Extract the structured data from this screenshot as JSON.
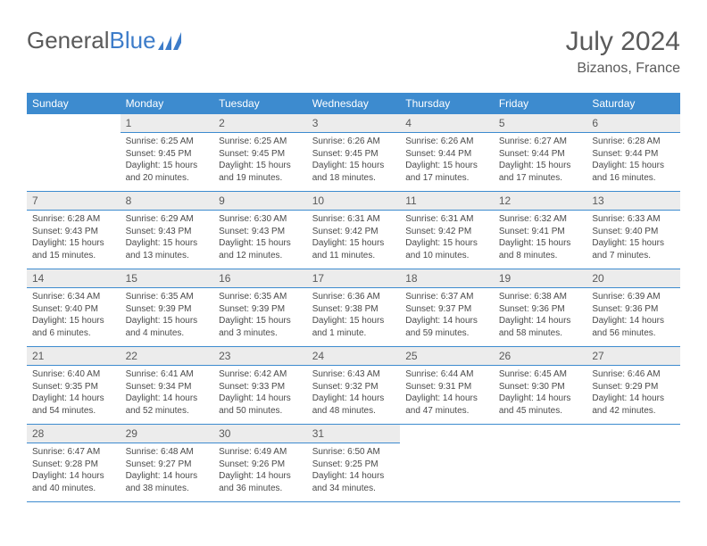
{
  "brand": {
    "textGray": "General",
    "textBlue": "Blue"
  },
  "header": {
    "title": "July 2024",
    "location": "Bizanos, France"
  },
  "colors": {
    "headerBar": "#3d8bcf",
    "dayNumBg": "#ececec",
    "rule": "#3d8bcf",
    "textGray": "#5a5a5a",
    "brandBlue": "#3d7cc9",
    "background": "#ffffff"
  },
  "dayNames": [
    "Sunday",
    "Monday",
    "Tuesday",
    "Wednesday",
    "Thursday",
    "Friday",
    "Saturday"
  ],
  "startOffset": 1,
  "days": [
    {
      "n": 1,
      "rise": "6:25 AM",
      "set": "9:45 PM",
      "dl": "15 hours and 20 minutes."
    },
    {
      "n": 2,
      "rise": "6:25 AM",
      "set": "9:45 PM",
      "dl": "15 hours and 19 minutes."
    },
    {
      "n": 3,
      "rise": "6:26 AM",
      "set": "9:45 PM",
      "dl": "15 hours and 18 minutes."
    },
    {
      "n": 4,
      "rise": "6:26 AM",
      "set": "9:44 PM",
      "dl": "15 hours and 17 minutes."
    },
    {
      "n": 5,
      "rise": "6:27 AM",
      "set": "9:44 PM",
      "dl": "15 hours and 17 minutes."
    },
    {
      "n": 6,
      "rise": "6:28 AM",
      "set": "9:44 PM",
      "dl": "15 hours and 16 minutes."
    },
    {
      "n": 7,
      "rise": "6:28 AM",
      "set": "9:43 PM",
      "dl": "15 hours and 15 minutes."
    },
    {
      "n": 8,
      "rise": "6:29 AM",
      "set": "9:43 PM",
      "dl": "15 hours and 13 minutes."
    },
    {
      "n": 9,
      "rise": "6:30 AM",
      "set": "9:43 PM",
      "dl": "15 hours and 12 minutes."
    },
    {
      "n": 10,
      "rise": "6:31 AM",
      "set": "9:42 PM",
      "dl": "15 hours and 11 minutes."
    },
    {
      "n": 11,
      "rise": "6:31 AM",
      "set": "9:42 PM",
      "dl": "15 hours and 10 minutes."
    },
    {
      "n": 12,
      "rise": "6:32 AM",
      "set": "9:41 PM",
      "dl": "15 hours and 8 minutes."
    },
    {
      "n": 13,
      "rise": "6:33 AM",
      "set": "9:40 PM",
      "dl": "15 hours and 7 minutes."
    },
    {
      "n": 14,
      "rise": "6:34 AM",
      "set": "9:40 PM",
      "dl": "15 hours and 6 minutes."
    },
    {
      "n": 15,
      "rise": "6:35 AM",
      "set": "9:39 PM",
      "dl": "15 hours and 4 minutes."
    },
    {
      "n": 16,
      "rise": "6:35 AM",
      "set": "9:39 PM",
      "dl": "15 hours and 3 minutes."
    },
    {
      "n": 17,
      "rise": "6:36 AM",
      "set": "9:38 PM",
      "dl": "15 hours and 1 minute."
    },
    {
      "n": 18,
      "rise": "6:37 AM",
      "set": "9:37 PM",
      "dl": "14 hours and 59 minutes."
    },
    {
      "n": 19,
      "rise": "6:38 AM",
      "set": "9:36 PM",
      "dl": "14 hours and 58 minutes."
    },
    {
      "n": 20,
      "rise": "6:39 AM",
      "set": "9:36 PM",
      "dl": "14 hours and 56 minutes."
    },
    {
      "n": 21,
      "rise": "6:40 AM",
      "set": "9:35 PM",
      "dl": "14 hours and 54 minutes."
    },
    {
      "n": 22,
      "rise": "6:41 AM",
      "set": "9:34 PM",
      "dl": "14 hours and 52 minutes."
    },
    {
      "n": 23,
      "rise": "6:42 AM",
      "set": "9:33 PM",
      "dl": "14 hours and 50 minutes."
    },
    {
      "n": 24,
      "rise": "6:43 AM",
      "set": "9:32 PM",
      "dl": "14 hours and 48 minutes."
    },
    {
      "n": 25,
      "rise": "6:44 AM",
      "set": "9:31 PM",
      "dl": "14 hours and 47 minutes."
    },
    {
      "n": 26,
      "rise": "6:45 AM",
      "set": "9:30 PM",
      "dl": "14 hours and 45 minutes."
    },
    {
      "n": 27,
      "rise": "6:46 AM",
      "set": "9:29 PM",
      "dl": "14 hours and 42 minutes."
    },
    {
      "n": 28,
      "rise": "6:47 AM",
      "set": "9:28 PM",
      "dl": "14 hours and 40 minutes."
    },
    {
      "n": 29,
      "rise": "6:48 AM",
      "set": "9:27 PM",
      "dl": "14 hours and 38 minutes."
    },
    {
      "n": 30,
      "rise": "6:49 AM",
      "set": "9:26 PM",
      "dl": "14 hours and 36 minutes."
    },
    {
      "n": 31,
      "rise": "6:50 AM",
      "set": "9:25 PM",
      "dl": "14 hours and 34 minutes."
    }
  ],
  "labels": {
    "sunrise": "Sunrise: ",
    "sunset": "Sunset: ",
    "daylight": "Daylight: "
  }
}
